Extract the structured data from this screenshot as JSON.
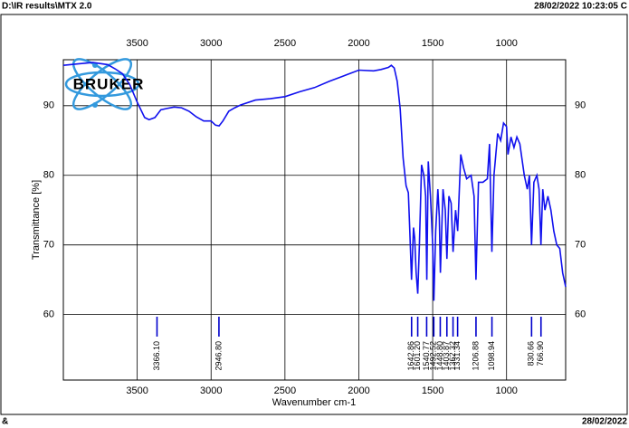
{
  "header": {
    "path": "D:\\IR results\\MTX 2.0",
    "timestamp": "28/02/2022 10:23:05 C"
  },
  "footer": {
    "left": "&",
    "right": "28/02/2022"
  },
  "chart_data": {
    "type": "line",
    "logo": "BRUKER",
    "x_label": "Wavenumber cm-1",
    "y_label": "Transmittance [%]",
    "xlim": [
      4000,
      600
    ],
    "ylim": [
      50.6,
      96.6
    ],
    "xticks": [
      3500,
      3000,
      2500,
      2000,
      1500,
      1000
    ],
    "yticks": [
      60,
      70,
      80,
      90
    ],
    "grid": true,
    "series": [
      {
        "name": "MTX 2.0",
        "color": "#1010ee",
        "x": [
          4000,
          3900,
          3800,
          3700,
          3650,
          3600,
          3550,
          3500,
          3450,
          3420,
          3380,
          3340,
          3300,
          3250,
          3200,
          3150,
          3100,
          3050,
          3000,
          2970,
          2946,
          2920,
          2880,
          2840,
          2800,
          2700,
          2600,
          2500,
          2400,
          2300,
          2200,
          2100,
          2000,
          1900,
          1850,
          1800,
          1780,
          1760,
          1740,
          1720,
          1700,
          1680,
          1665,
          1655,
          1643,
          1630,
          1622,
          1612,
          1601,
          1590,
          1575,
          1560,
          1548,
          1540,
          1530,
          1515,
          1500,
          1492,
          1480,
          1465,
          1455,
          1448,
          1430,
          1415,
          1404,
          1390,
          1375,
          1362,
          1345,
          1331,
          1310,
          1290,
          1270,
          1240,
          1220,
          1207,
          1190,
          1160,
          1130,
          1115,
          1099,
          1085,
          1060,
          1040,
          1020,
          1000,
          990,
          970,
          950,
          930,
          910,
          880,
          860,
          845,
          831,
          815,
          795,
          780,
          767,
          755,
          740,
          720,
          700,
          680,
          660,
          640,
          620,
          600
        ],
        "values": [
          95.8,
          96.0,
          96.2,
          95.9,
          95.3,
          94.6,
          93.0,
          90.5,
          88.3,
          88.0,
          88.3,
          89.4,
          89.6,
          89.8,
          89.7,
          89.2,
          88.4,
          87.8,
          87.8,
          87.2,
          87.1,
          87.8,
          89.2,
          89.7,
          90.1,
          90.8,
          91.0,
          91.3,
          92.0,
          92.6,
          93.5,
          94.3,
          95.1,
          95.0,
          95.2,
          95.5,
          95.8,
          95.4,
          93.5,
          89.5,
          82.5,
          78.5,
          77.5,
          72.0,
          65.0,
          72.5,
          71.0,
          66.0,
          63.0,
          70.0,
          81.5,
          80.0,
          77.0,
          65.0,
          82.0,
          77.0,
          70.0,
          62.0,
          72.0,
          78.0,
          74.0,
          66.0,
          78.0,
          75.0,
          68.0,
          77.0,
          76.0,
          69.0,
          75.0,
          72.0,
          83.0,
          81.0,
          79.5,
          80.0,
          77.0,
          65.0,
          79.0,
          79.0,
          79.5,
          84.5,
          69.0,
          80.0,
          86.0,
          85.0,
          87.5,
          87.0,
          83.0,
          85.5,
          84.0,
          85.5,
          84.5,
          80.0,
          78.0,
          80.0,
          70.0,
          79.0,
          80.0,
          78.0,
          70.0,
          78.0,
          75.0,
          77.0,
          75.0,
          72.0,
          70.0,
          69.5,
          66.0,
          64.0
        ]
      }
    ],
    "peaks": [
      {
        "value": 3366.1,
        "label": "3366.10"
      },
      {
        "value": 2946.8,
        "label": "2946.80"
      },
      {
        "value": 1642.86,
        "label": "1642.86"
      },
      {
        "value": 1601.2,
        "label": "1601.20"
      },
      {
        "value": 1540.77,
        "label": "1540.77"
      },
      {
        "value": 1492.52,
        "label": "1492.52"
      },
      {
        "value": 1448.8,
        "label": "1448.80"
      },
      {
        "value": 1403.87,
        "label": "1403.87"
      },
      {
        "value": 1362.32,
        "label": "1362.32"
      },
      {
        "value": 1331.34,
        "label": "1331.34"
      },
      {
        "value": 1206.88,
        "label": "1206.88"
      },
      {
        "value": 1098.94,
        "label": "1098.94"
      },
      {
        "value": 830.66,
        "label": "830.66"
      },
      {
        "value": 766.9,
        "label": "766.90"
      }
    ]
  }
}
